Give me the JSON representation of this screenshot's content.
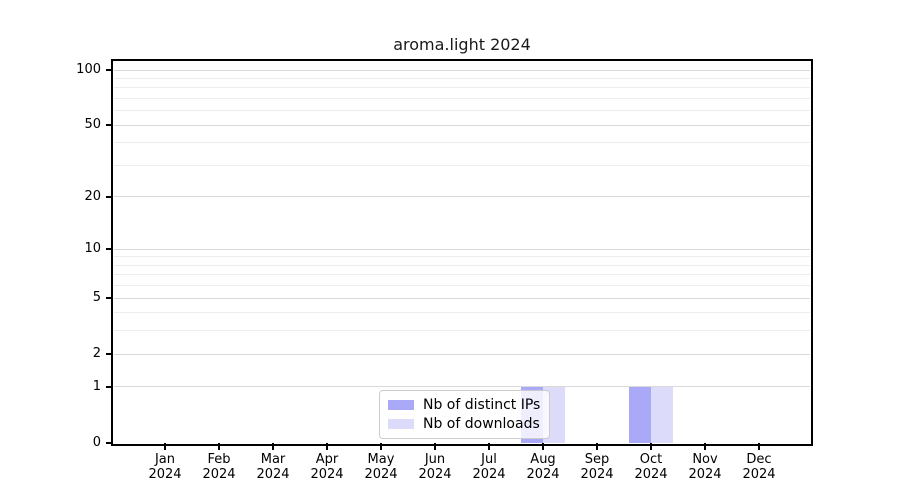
{
  "chart_data": {
    "type": "bar",
    "title": "aroma.light 2024",
    "categories": [
      "Jan",
      "Feb",
      "Mar",
      "Apr",
      "May",
      "Jun",
      "Jul",
      "Aug",
      "Sep",
      "Oct",
      "Nov",
      "Dec"
    ],
    "x_year_label": "2024",
    "series": [
      {
        "name": "Nb of distinct IPs",
        "color": "#a9a9f7",
        "values": [
          0,
          0,
          0,
          0,
          0,
          0,
          0,
          1,
          0,
          1,
          0,
          0
        ]
      },
      {
        "name": "Nb of downloads",
        "color": "#dcdcfa",
        "values": [
          0,
          0,
          0,
          0,
          0,
          0,
          0,
          1,
          0,
          1,
          0,
          0
        ]
      }
    ],
    "y_axis": {
      "scale": "log1p",
      "ticks": [
        0,
        1,
        2,
        5,
        10,
        20,
        50,
        100
      ],
      "minor_ticks": [
        3,
        4,
        6,
        7,
        8,
        9,
        30,
        40,
        60,
        70,
        80,
        90
      ],
      "log_span": 2.0582,
      "ylim_bottom": 0
    },
    "legend_position": "lower center",
    "grid": true,
    "colors": {
      "grid_major": "#d9d9d9",
      "grid_minor": "#ececec",
      "axis": "#000000",
      "background": "#ffffff"
    }
  }
}
